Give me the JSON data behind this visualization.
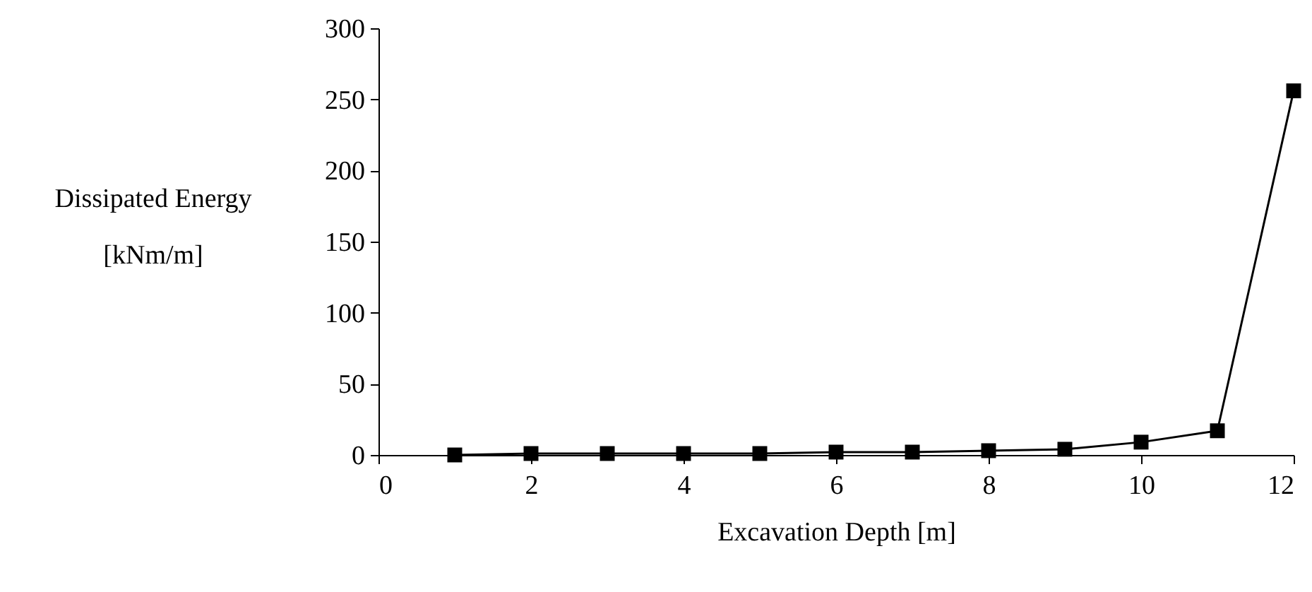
{
  "chart_data": {
    "type": "line",
    "xlabel": "Excavation Depth [m]",
    "ylabel": "Dissipated Energy\n[kNm/m]",
    "x": [
      1,
      2,
      3,
      4,
      5,
      6,
      7,
      8,
      9,
      10,
      11,
      12
    ],
    "series": [
      {
        "color": "#000000",
        "values": [
          0,
          1,
          1,
          1,
          1,
          2,
          2,
          3,
          4,
          9,
          17,
          256
        ]
      }
    ],
    "xlim": [
      0,
      12
    ],
    "xticks": [
      0,
      2,
      4,
      6,
      8,
      10,
      12
    ],
    "ylim": [
      0,
      300
    ],
    "yticks": [
      0,
      50,
      100,
      150,
      200,
      250,
      300
    ],
    "grid": false,
    "legend": false,
    "marker": "square",
    "line_style": "solid"
  }
}
